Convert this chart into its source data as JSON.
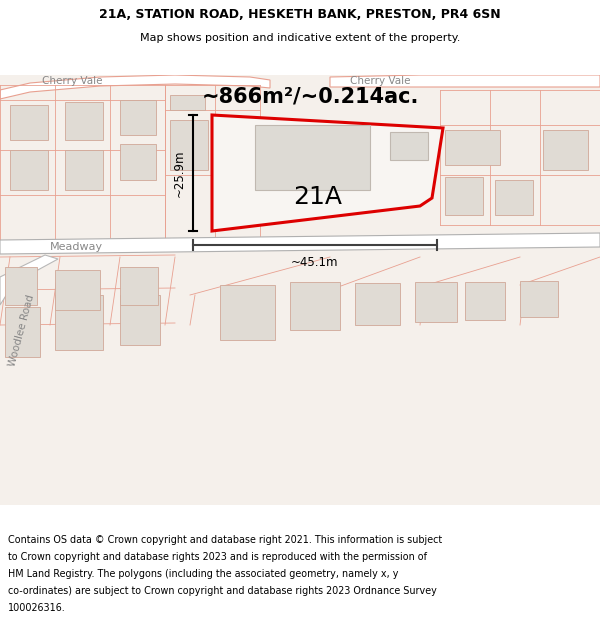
{
  "title_line1": "21A, STATION ROAD, HESKETH BANK, PRESTON, PR4 6SN",
  "title_line2": "Map shows position and indicative extent of the property.",
  "area_label": "~866m²/~0.214ac.",
  "label_21A": "21A",
  "dim_height": "~25.9m",
  "dim_width": "~45.1m",
  "cherry_vale_left": "Cherry Vale",
  "cherry_vale_right": "Cherry Vale",
  "meadway": "Meadway",
  "woodlee_road": "Woodlee Road",
  "map_bg": "#f5f0eb",
  "road_surface": "#ffffff",
  "road_edge": "#e8a090",
  "road_edge_dark": "#b0b0b0",
  "plot_outline_color": "#dd0000",
  "building_fill": "#e0dbd4",
  "building_edge": "#d0a898",
  "plot_fill": "#f8f5f2",
  "footer_lines": [
    "Contains OS data © Crown copyright and database right 2021. This information is subject",
    "to Crown copyright and database rights 2023 and is reproduced with the permission of",
    "HM Land Registry. The polygons (including the associated geometry, namely x, y",
    "co-ordinates) are subject to Crown copyright and database rights 2023 Ordnance Survey",
    "100026316."
  ]
}
